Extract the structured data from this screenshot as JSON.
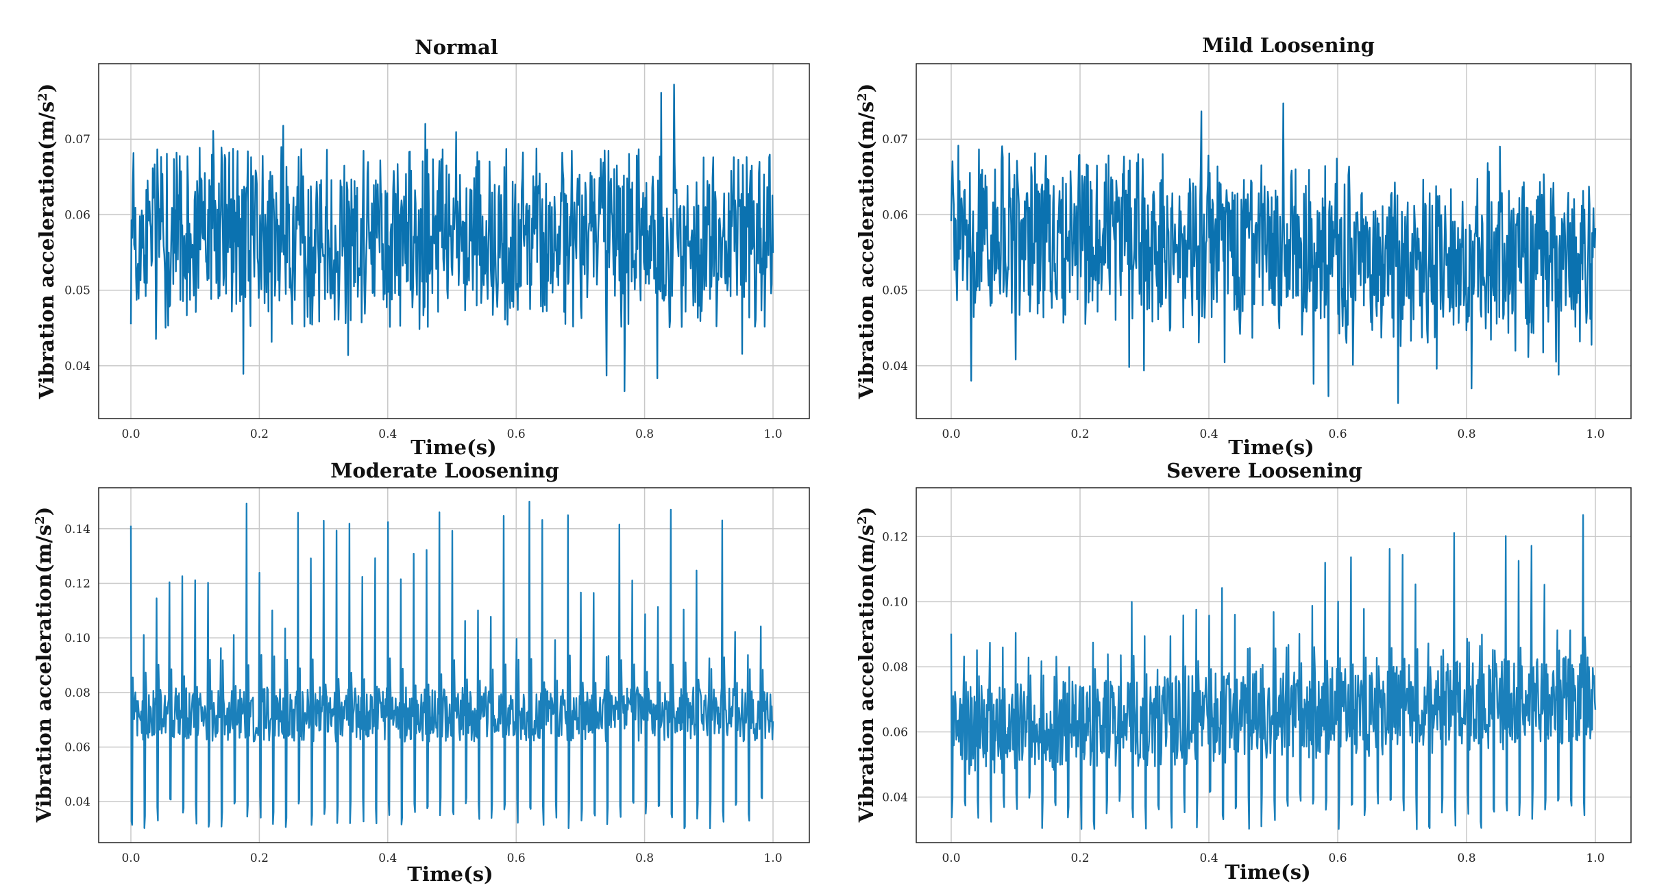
{
  "chart_data": [
    {
      "type": "line",
      "title": "Normal",
      "xlabel": "Time(s)",
      "ylabel_main": "Vibration acceleration(m/s",
      "ylabel_sup": "2",
      "ylabel_close": ")",
      "xlim": [
        0,
        1.0
      ],
      "ylim": [
        0.033,
        0.08
      ],
      "xticks": [
        0.0,
        0.2,
        0.4,
        0.6,
        0.8,
        1.0
      ],
      "xtick_labels": [
        "0.0",
        "0.2",
        "0.4",
        "0.6",
        "0.8",
        "1.0"
      ],
      "yticks": [
        0.04,
        0.05,
        0.06,
        0.07
      ],
      "ytick_labels": [
        "0.04",
        "0.05",
        "0.06",
        "0.07"
      ],
      "series": [
        {
          "name": "Normal",
          "color": "#0b72b0",
          "n_points": 1000,
          "x_range": [
            0,
            1.0
          ],
          "mean": 0.057,
          "typical_min": 0.045,
          "typical_max": 0.069,
          "extreme_min": 0.035,
          "extreme_max": 0.078,
          "pattern": "dense noise"
        }
      ]
    },
    {
      "type": "line",
      "title": "Mild Loosening",
      "xlabel": "Time(s)",
      "ylabel_main": "Vibration acceleration(m/s",
      "ylabel_sup": "2",
      "ylabel_close": ")",
      "xlim": [
        0,
        1.0
      ],
      "ylim": [
        0.033,
        0.08
      ],
      "xticks": [
        0.0,
        0.2,
        0.4,
        0.6,
        0.8,
        1.0
      ],
      "xtick_labels": [
        "0.0",
        "0.2",
        "0.4",
        "0.6",
        "0.8",
        "1.0"
      ],
      "yticks": [
        0.04,
        0.05,
        0.06,
        0.07
      ],
      "ytick_labels": [
        "0.04",
        "0.05",
        "0.06",
        "0.07"
      ],
      "series": [
        {
          "name": "Mild Loosening",
          "color": "#0b72b0",
          "n_points": 1000,
          "x_range": [
            0,
            1.0
          ],
          "mean_start": 0.058,
          "mean_end": 0.053,
          "typical_min": 0.044,
          "typical_max": 0.068,
          "extreme_min": 0.035,
          "extreme_max": 0.077,
          "pattern": "dense noise, slowly decreasing"
        }
      ]
    },
    {
      "type": "line",
      "title": "Moderate Loosening",
      "xlabel": "Time(s)",
      "ylabel_main": "Vibration acceleration(m/s",
      "ylabel_sup": "2",
      "ylabel_close": ")",
      "xlim": [
        0,
        1.0
      ],
      "ylim": [
        0.025,
        0.155
      ],
      "xticks": [
        0.0,
        0.2,
        0.4,
        0.6,
        0.8,
        1.0
      ],
      "xtick_labels": [
        "0.0",
        "0.2",
        "0.4",
        "0.6",
        "0.8",
        "1.0"
      ],
      "yticks": [
        0.04,
        0.06,
        0.08,
        0.1,
        0.12,
        0.14
      ],
      "ytick_labels": [
        "0.04",
        "0.06",
        "0.08",
        "0.10",
        "0.12",
        "0.14"
      ],
      "series": [
        {
          "name": "Moderate Loosening",
          "color": "#1b80bb",
          "n_points": 1000,
          "x_range": [
            0,
            1.0
          ],
          "baseline": 0.072,
          "pulse_count": 50,
          "pulse_min": 0.03,
          "pulse_max": 0.15,
          "pattern": "periodic impacts"
        }
      ]
    },
    {
      "type": "line",
      "title": "Severe Loosening",
      "xlabel": "Time(s)",
      "ylabel_main": "Vibration acceleration(m/s",
      "ylabel_sup": "2",
      "ylabel_close": ")",
      "xlim": [
        0,
        1.0
      ],
      "ylim": [
        0.026,
        0.135
      ],
      "xticks": [
        0.0,
        0.2,
        0.4,
        0.6,
        0.8,
        1.0
      ],
      "xtick_labels": [
        "0.0",
        "0.2",
        "0.4",
        "0.6",
        "0.8",
        "1.0"
      ],
      "yticks": [
        0.04,
        0.06,
        0.08,
        0.1,
        0.12
      ],
      "ytick_labels": [
        "0.04",
        "0.06",
        "0.08",
        "0.10",
        "0.12"
      ],
      "series": [
        {
          "name": "Severe Loosening",
          "color": "#1b80bb",
          "n_points": 1000,
          "x_range": [
            0,
            1.0
          ],
          "baseline_start": 0.06,
          "baseline_end": 0.07,
          "pulse_count": 50,
          "pulse_min": 0.03,
          "pulse_max": 0.13,
          "pattern": "periodic impacts, increasing"
        }
      ]
    }
  ]
}
